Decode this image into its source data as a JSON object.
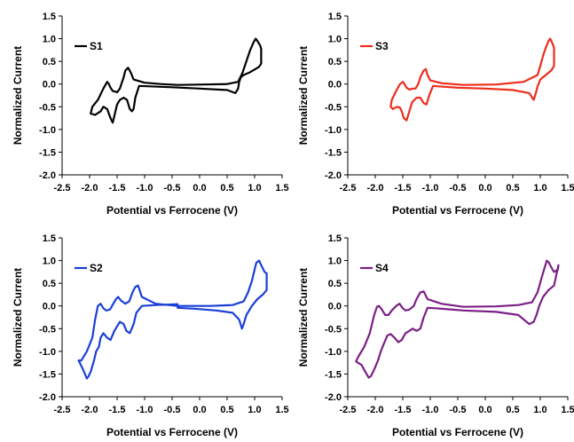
{
  "chart_data": [
    {
      "type": "line",
      "xlabel": "Potential vs Ferrocene (V)",
      "ylabel": "Normalized Current",
      "xlim": [
        -2.5,
        1.5
      ],
      "ylim": [
        -2.0,
        1.5
      ],
      "xticks": [
        "-2.5",
        "-2.0",
        "-1.5",
        "-1.0",
        "-0.5",
        "0.0",
        "0.5",
        "1.0",
        "1.5"
      ],
      "yticks": [
        "1.5",
        "1.0",
        "0.5",
        "0.0",
        "-0.5",
        "-1.0",
        "-1.5",
        "-2.0"
      ],
      "grid": false,
      "legend": "top-left",
      "series": [
        {
          "name": "S1",
          "color": "#000000",
          "x": [
            -0.4,
            0.1,
            0.5,
            0.7,
            0.78,
            0.85,
            0.92,
            0.98,
            1.02,
            1.05,
            1.1,
            1.12,
            1.12,
            1.08,
            1.0,
            0.9,
            0.8,
            0.75,
            0.72,
            0.7,
            0.65,
            0.5,
            0.0,
            -0.5,
            -0.9,
            -1.1,
            -1.17,
            -1.2,
            -1.23,
            -1.27,
            -1.32,
            -1.38,
            -1.45,
            -1.5,
            -1.53,
            -1.56,
            -1.58,
            -1.62,
            -1.68,
            -1.75,
            -1.8,
            -1.9,
            -1.98,
            -1.95,
            -1.85,
            -1.75,
            -1.68,
            -1.65,
            -1.62,
            -1.58,
            -1.5,
            -1.45,
            -1.38,
            -1.35,
            -1.3,
            -1.25,
            -1.2,
            -1.0,
            -0.7,
            -0.4
          ],
          "y": [
            -0.02,
            -0.01,
            0.0,
            0.05,
            0.25,
            0.5,
            0.75,
            0.92,
            1.0,
            0.95,
            0.85,
            0.78,
            0.45,
            0.38,
            0.32,
            0.25,
            0.2,
            0.15,
            0.05,
            -0.1,
            -0.2,
            -0.13,
            -0.1,
            -0.07,
            -0.05,
            -0.04,
            -0.3,
            -0.55,
            -0.6,
            -0.55,
            -0.35,
            -0.3,
            -0.35,
            -0.45,
            -0.6,
            -0.75,
            -0.85,
            -0.75,
            -0.55,
            -0.5,
            -0.6,
            -0.68,
            -0.65,
            -0.5,
            -0.35,
            -0.1,
            0.05,
            0.0,
            -0.08,
            -0.15,
            -0.18,
            -0.1,
            0.15,
            0.3,
            0.36,
            0.25,
            0.1,
            0.03,
            0.0,
            -0.02
          ]
        }
      ]
    },
    {
      "type": "line",
      "xlabel": "Potential vs Ferrocene (V)",
      "ylabel": "Normalized Current",
      "xlim": [
        -2.5,
        1.5
      ],
      "ylim": [
        -2.0,
        1.5
      ],
      "xticks": [
        "-2.5",
        "-2.0",
        "-1.5",
        "-1.0",
        "-0.5",
        "0.0",
        "0.5",
        "1.0",
        "1.5"
      ],
      "yticks": [
        "1.5",
        "1.0",
        "0.5",
        "0.0",
        "-0.5",
        "-1.0",
        "-1.5",
        "-2.0"
      ],
      "grid": false,
      "legend": "top-left",
      "series": [
        {
          "name": "S3",
          "color": "#ee2c1c",
          "x": [
            -0.4,
            0.2,
            0.7,
            0.95,
            1.0,
            1.05,
            1.1,
            1.15,
            1.18,
            1.22,
            1.25,
            1.25,
            1.2,
            1.1,
            1.0,
            0.95,
            0.92,
            0.88,
            0.8,
            0.5,
            0.0,
            -0.5,
            -0.85,
            -0.95,
            -1.02,
            -1.07,
            -1.12,
            -1.18,
            -1.25,
            -1.33,
            -1.38,
            -1.43,
            -1.48,
            -1.52,
            -1.55,
            -1.6,
            -1.68,
            -1.72,
            -1.7,
            -1.62,
            -1.55,
            -1.5,
            -1.47,
            -1.43,
            -1.38,
            -1.32,
            -1.27,
            -1.22,
            -1.18,
            -1.12,
            -1.08,
            -1.05,
            -1.0,
            -0.8,
            -0.4
          ],
          "y": [
            -0.02,
            -0.01,
            0.05,
            0.2,
            0.4,
            0.62,
            0.8,
            0.95,
            1.0,
            0.9,
            0.8,
            0.4,
            0.3,
            0.2,
            0.1,
            -0.05,
            -0.2,
            -0.35,
            -0.2,
            -0.13,
            -0.1,
            -0.08,
            -0.05,
            -0.04,
            -0.25,
            -0.45,
            -0.42,
            -0.3,
            -0.3,
            -0.4,
            -0.6,
            -0.8,
            -0.75,
            -0.6,
            -0.52,
            -0.5,
            -0.55,
            -0.5,
            -0.35,
            -0.15,
            0.0,
            0.05,
            0.0,
            -0.08,
            -0.12,
            -0.1,
            -0.1,
            0.0,
            0.15,
            0.3,
            0.33,
            0.2,
            0.08,
            0.02,
            -0.02
          ]
        }
      ]
    },
    {
      "type": "line",
      "xlabel": "Potential vs Ferrocene (V)",
      "ylabel": "Normalized Current",
      "xlim": [
        -2.5,
        1.5
      ],
      "ylim": [
        -2.0,
        1.5
      ],
      "xticks": [
        "-2.5",
        "-2.0",
        "-1.5",
        "-1.0",
        "-0.5",
        "0.0",
        "0.5",
        "1.0",
        "1.5"
      ],
      "yticks": [
        "1.5",
        "1.0",
        "0.5",
        "0.0",
        "-0.5",
        "-1.0",
        "-1.5",
        "-2.0"
      ],
      "grid": false,
      "legend": "top-left",
      "series": [
        {
          "name": "S2",
          "color": "#1a3fd9",
          "x": [
            -0.4,
            0.2,
            0.6,
            0.8,
            0.88,
            0.95,
            1.0,
            1.03,
            1.08,
            1.12,
            1.18,
            1.22,
            1.22,
            1.15,
            1.05,
            0.95,
            0.85,
            0.8,
            0.77,
            0.72,
            0.6,
            0.3,
            -0.1,
            -0.4,
            -0.4,
            -0.8,
            -1.05,
            -1.15,
            -1.2,
            -1.27,
            -1.33,
            -1.38,
            -1.45,
            -1.5,
            -1.55,
            -1.62,
            -1.68,
            -1.75,
            -1.8,
            -1.83,
            -1.88,
            -1.92,
            -1.98,
            -2.02,
            -2.05,
            -2.12,
            -2.2,
            -2.15,
            -2.05,
            -1.95,
            -1.9,
            -1.85,
            -1.8,
            -1.75,
            -1.7,
            -1.63,
            -1.57,
            -1.52,
            -1.48,
            -1.43,
            -1.35,
            -1.28,
            -1.22,
            -1.17,
            -1.12,
            -1.05,
            -0.8,
            -0.4
          ],
          "y": [
            0.0,
            0.0,
            0.02,
            0.1,
            0.3,
            0.55,
            0.8,
            0.95,
            1.0,
            0.9,
            0.75,
            0.72,
            0.35,
            0.25,
            0.15,
            0.0,
            -0.2,
            -0.4,
            -0.5,
            -0.3,
            -0.15,
            -0.1,
            -0.06,
            -0.04,
            0.04,
            0.02,
            0.0,
            -0.15,
            -0.4,
            -0.6,
            -0.55,
            -0.4,
            -0.35,
            -0.45,
            -0.55,
            -0.75,
            -0.7,
            -0.6,
            -0.7,
            -0.9,
            -1.0,
            -1.2,
            -1.45,
            -1.55,
            -1.6,
            -1.4,
            -1.2,
            -1.2,
            -1.0,
            -0.7,
            -0.3,
            0.0,
            0.05,
            -0.05,
            -0.1,
            -0.08,
            0.05,
            0.15,
            0.2,
            0.12,
            0.05,
            0.1,
            0.3,
            0.42,
            0.45,
            0.2,
            0.05,
            0.0
          ]
        }
      ]
    },
    {
      "type": "line",
      "xlabel": "Potential vs Ferrocene (V)",
      "ylabel": "Normalized Current",
      "xlim": [
        -2.5,
        1.5
      ],
      "ylim": [
        -2.0,
        1.5
      ],
      "xticks": [
        "-2.5",
        "-2.0",
        "-1.5",
        "-1.0",
        "-0.5",
        "0.0",
        "0.5",
        "1.0",
        "1.5"
      ],
      "yticks": [
        "1.5",
        "1.0",
        "0.5",
        "0.0",
        "-0.5",
        "-1.0",
        "-1.5",
        "-2.0"
      ],
      "grid": false,
      "legend": "top-left",
      "series": [
        {
          "name": "S4",
          "color": "#7b1f86",
          "x": [
            -0.4,
            0.2,
            0.6,
            0.85,
            0.95,
            1.02,
            1.08,
            1.12,
            1.16,
            1.2,
            1.25,
            1.32,
            1.33,
            1.25,
            1.15,
            1.05,
            0.98,
            0.93,
            0.88,
            0.8,
            0.6,
            0.2,
            -0.4,
            -0.9,
            -1.05,
            -1.12,
            -1.18,
            -1.25,
            -1.32,
            -1.38,
            -1.45,
            -1.52,
            -1.58,
            -1.65,
            -1.72,
            -1.78,
            -1.85,
            -1.9,
            -1.95,
            -2.02,
            -2.08,
            -2.12,
            -2.18,
            -2.25,
            -2.32,
            -2.35,
            -2.3,
            -2.2,
            -2.1,
            -2.02,
            -1.97,
            -1.93,
            -1.88,
            -1.82,
            -1.76,
            -1.7,
            -1.62,
            -1.56,
            -1.5,
            -1.45,
            -1.38,
            -1.3,
            -1.25,
            -1.18,
            -1.12,
            -1.05,
            -0.8,
            -0.4
          ],
          "y": [
            -0.02,
            -0.01,
            0.02,
            0.08,
            0.3,
            0.6,
            0.85,
            1.0,
            0.95,
            0.85,
            0.75,
            0.8,
            0.9,
            0.45,
            0.35,
            0.2,
            0.0,
            -0.2,
            -0.35,
            -0.4,
            -0.2,
            -0.13,
            -0.1,
            -0.05,
            -0.04,
            -0.25,
            -0.5,
            -0.55,
            -0.5,
            -0.55,
            -0.6,
            -0.75,
            -0.8,
            -0.7,
            -0.62,
            -0.65,
            -0.85,
            -1.0,
            -1.2,
            -1.4,
            -1.55,
            -1.58,
            -1.45,
            -1.3,
            -1.25,
            -1.22,
            -1.1,
            -0.9,
            -0.6,
            -0.2,
            -0.02,
            0.0,
            -0.08,
            -0.2,
            -0.2,
            -0.1,
            0.0,
            0.05,
            -0.05,
            -0.1,
            -0.08,
            0.0,
            0.15,
            0.3,
            0.32,
            0.15,
            0.05,
            -0.02
          ]
        }
      ]
    }
  ]
}
